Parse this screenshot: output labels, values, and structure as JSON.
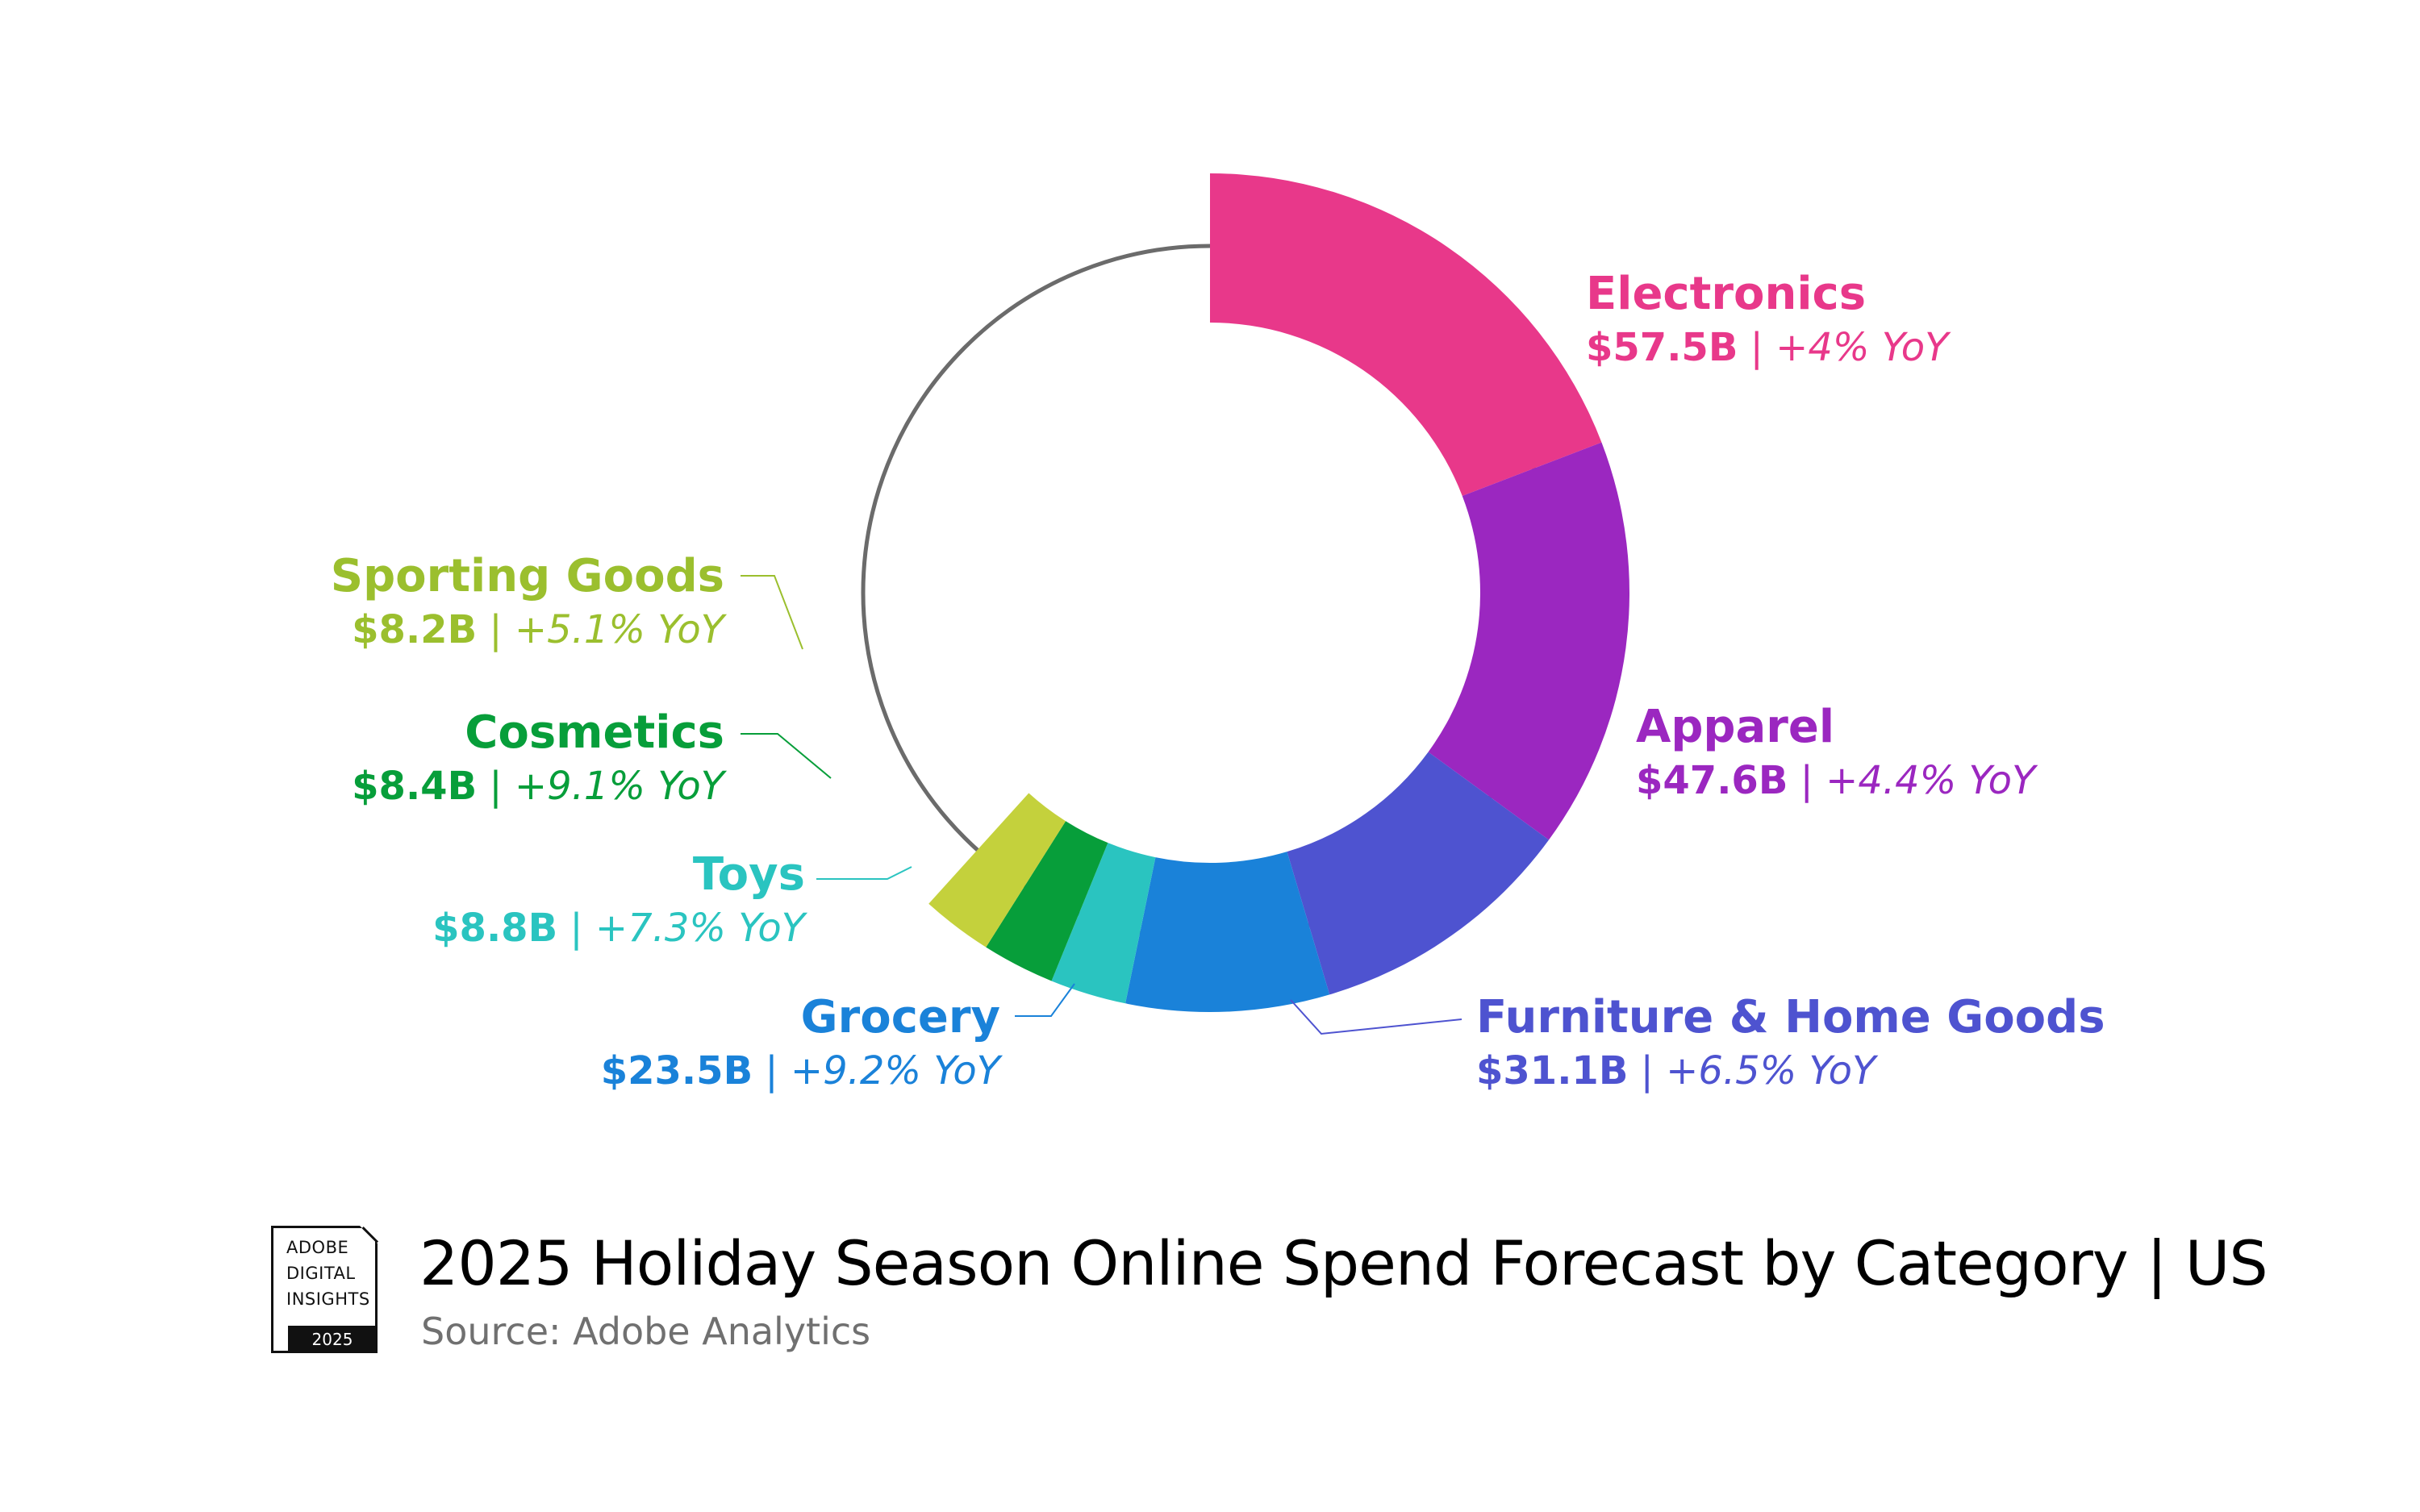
{
  "chart_data": {
    "type": "pie",
    "variant": "donut",
    "title": "2025 Holiday Season Online Spend Forecast by Category | US",
    "source": "Source: Adobe Analytics",
    "unit": "$B",
    "categories": [
      "Electronics",
      "Apparel",
      "Furniture & Home Goods",
      "Grocery",
      "Toys",
      "Cosmetics",
      "Sporting Goods"
    ],
    "values": [
      57.5,
      47.6,
      31.1,
      23.5,
      8.8,
      8.4,
      8.2
    ],
    "value_labels": [
      "$57.5B",
      "$47.6B",
      "$31.1B",
      "$23.5B",
      "$8.8B",
      "$8.4B",
      "$8.2B"
    ],
    "yoy_labels": [
      "+4% YoY",
      "+4.4% YoY",
      "+6.5% YoY",
      "+9.2% YoY",
      "+7.3% YoY",
      "+9.1% YoY",
      "+5.1% YoY"
    ],
    "colors": [
      "#E8388A",
      "#9B27C0",
      "#4E53D0",
      "#1A82D9",
      "#2AC4C0",
      "#079E3A",
      "#C4D13C"
    ],
    "label_colors": [
      "#E8388A",
      "#9B27C0",
      "#4E53D0",
      "#1A82D9",
      "#2AC4C0",
      "#079E3A",
      "#9BBF2E"
    ],
    "separator": "|",
    "grid": false,
    "legend": "none"
  },
  "badge": {
    "line1": "ADOBE",
    "line2": "DIGITAL",
    "line3": "INSIGHTS",
    "year": "2025"
  }
}
